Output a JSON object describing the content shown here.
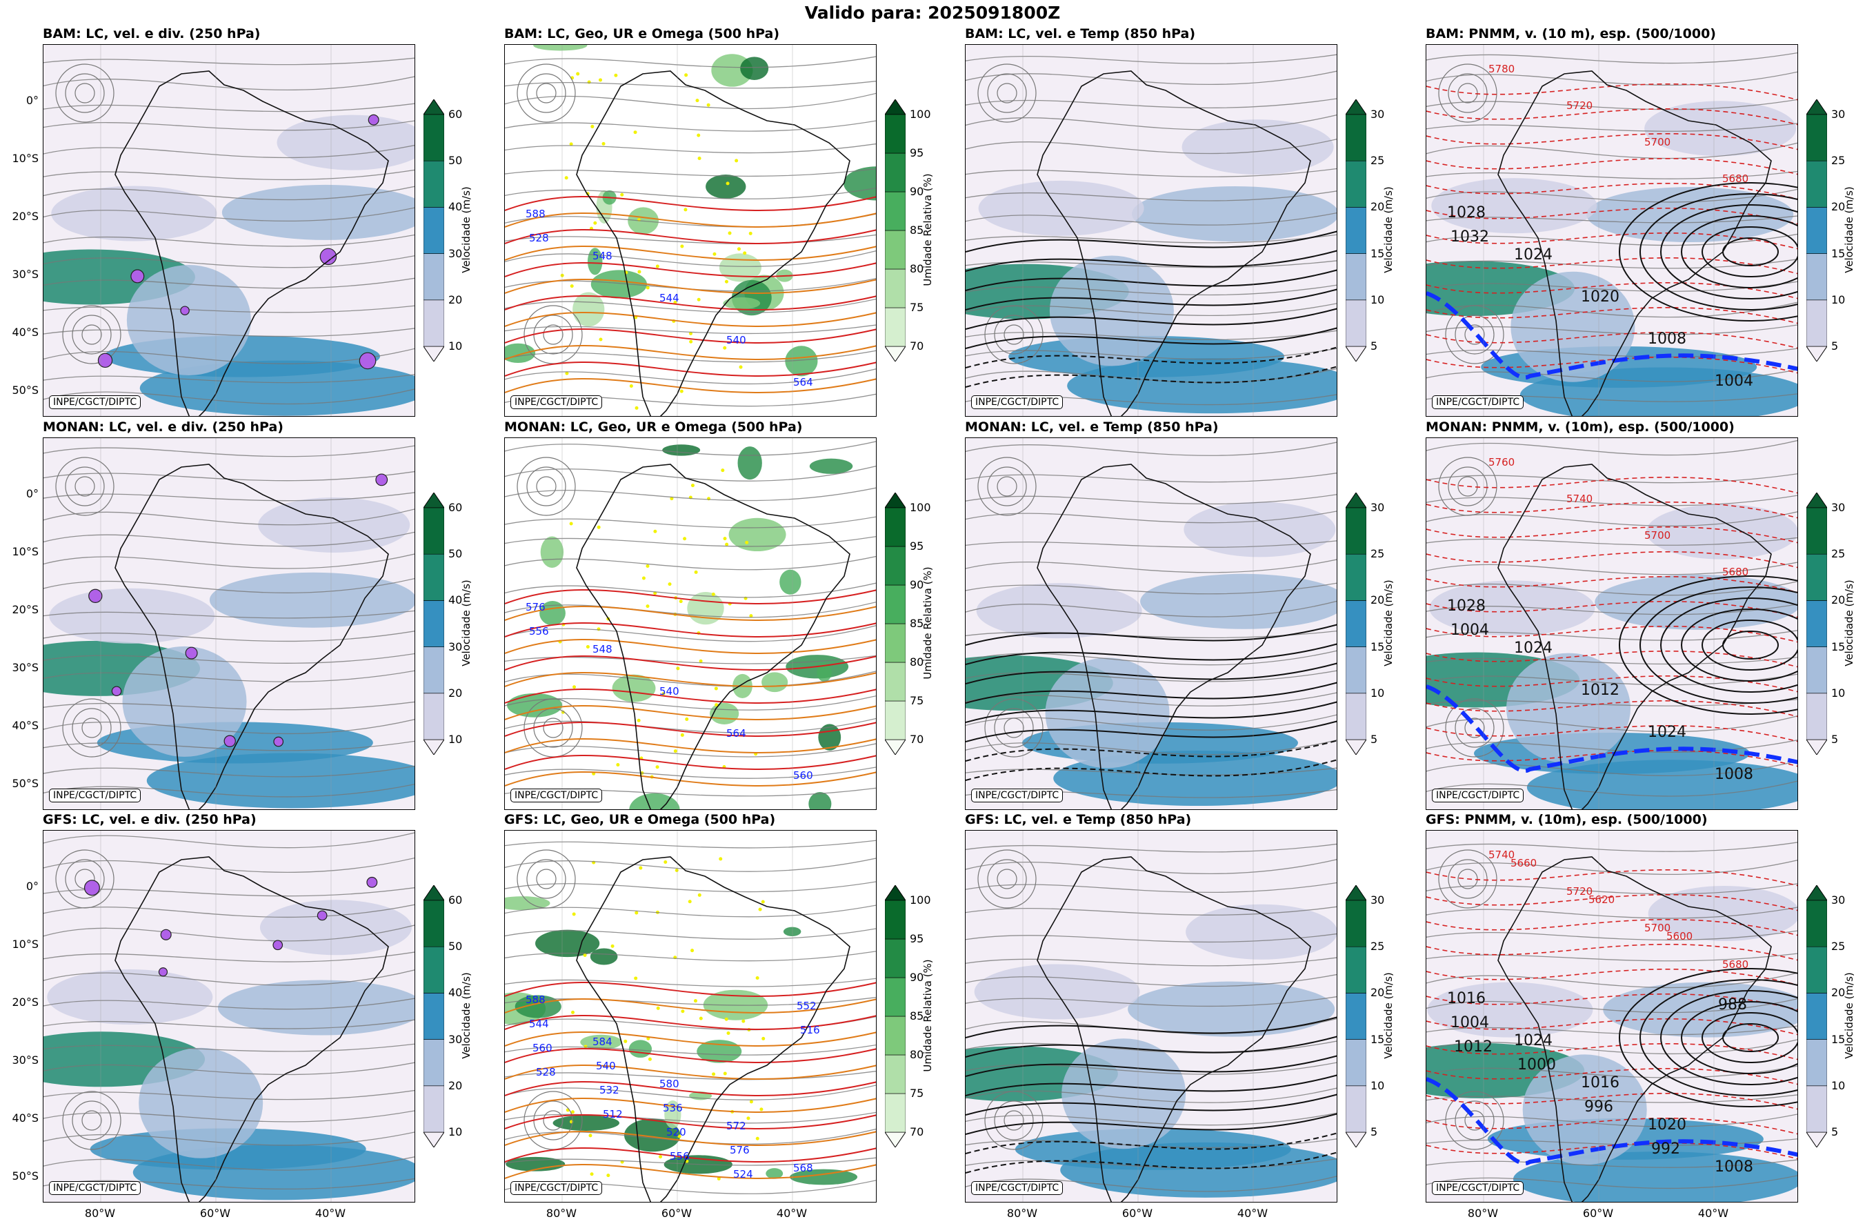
{
  "figure": {
    "title": "Valido para: 2025091800Z",
    "credit": "INPE/CGCT/DIPTC"
  },
  "axes": {
    "lat_ticks": [
      "0°",
      "10°S",
      "20°S",
      "30°S",
      "40°S",
      "50°S"
    ],
    "lon_ticks": [
      "80°W",
      "60°W",
      "40°W"
    ]
  },
  "colors": {
    "contour_geo": "#d62020",
    "contour_temp": "#111111",
    "streamline": "#777777",
    "blue_line": "#1030ff",
    "label_blue": "#1020ff"
  },
  "colorbars": {
    "vel_250": {
      "label": "Velocidade (m/s)",
      "ticks": [
        "10",
        "20",
        "30",
        "40",
        "50",
        "60"
      ],
      "colors": [
        "#f3eef6",
        "#d0d1e6",
        "#a6bddb",
        "#3690c0",
        "#1f8a70",
        "#0b6b3a",
        "#0b5a30"
      ]
    },
    "ur_500": {
      "label": "Umidade Relativa (%)",
      "ticks": [
        "70",
        "75",
        "80",
        "85",
        "90",
        "95",
        "100"
      ],
      "colors": [
        "#f7fcf5",
        "#d5efcf",
        "#b0dfa9",
        "#7ec97b",
        "#48ae5e",
        "#238b45",
        "#0a6b2c",
        "#00441b"
      ]
    },
    "vel_850": {
      "label": "Velocidade (m/s)",
      "ticks": [
        "5",
        "10",
        "15",
        "20",
        "25",
        "30"
      ],
      "colors": [
        "#f3eef6",
        "#d0d1e6",
        "#a6bddb",
        "#3690c0",
        "#1f8a70",
        "#0b6b3a",
        "#0b5a30"
      ]
    },
    "vel_10m": {
      "label": "Velocidade (m/s)",
      "ticks": [
        "5",
        "10",
        "15",
        "20",
        "25",
        "30"
      ],
      "colors": [
        "#f3eef6",
        "#d0d1e6",
        "#a6bddb",
        "#3690c0",
        "#1f8a70",
        "#0b6b3a",
        "#0b5a30"
      ]
    }
  },
  "rows": [
    {
      "model": "BAM",
      "titles": [
        "BAM: LC, vel. e div. (250 hPa)",
        "BAM: LC, Geo, UR e Omega (500 hPa)",
        "BAM: LC, vel. e Temp (850 hPa)",
        "BAM: PNMM, v. (10 m), esp. (500/1000)"
      ],
      "geo_labels": [
        "588",
        "548",
        "544",
        "540",
        "564",
        "528"
      ],
      "pnmm_labels": [
        "1028",
        "1024",
        "1020",
        "1008",
        "1004",
        "1032"
      ],
      "thk_labels": [
        "5780",
        "5720",
        "5700",
        "5680"
      ]
    },
    {
      "model": "MONAN",
      "titles": [
        "MONAN: LC, vel. e div. (250 hPa)",
        "MONAN: LC, Geo, UR e Omega (500 hPa)",
        "MONAN: LC, vel. e Temp (850 hPa)",
        "MONAN: PNMM, v. (10m), esp. (500/1000)"
      ],
      "geo_labels": [
        "576",
        "548",
        "540",
        "564",
        "560",
        "556"
      ],
      "pnmm_labels": [
        "1028",
        "1024",
        "1012",
        "1024",
        "1008",
        "1004"
      ],
      "thk_labels": [
        "5760",
        "5740",
        "5700",
        "5680"
      ]
    },
    {
      "model": "GFS",
      "titles": [
        "GFS: LC, vel. e div. (250 hPa)",
        "GFS: LC, Geo, UR e Omega (500 hPa)",
        "GFS: LC, vel. e Temp (850 hPa)",
        "GFS: PNMM, v. (10m), esp. (500/1000)"
      ],
      "geo_labels": [
        "588",
        "584",
        "580",
        "572",
        "568",
        "544",
        "540",
        "536",
        "576",
        "552",
        "560",
        "532",
        "520",
        "524",
        "516",
        "528",
        "512",
        "556"
      ],
      "pnmm_labels": [
        "1016",
        "1024",
        "1016",
        "1020",
        "1008",
        "1004",
        "1000",
        "996",
        "992",
        "988",
        "1012"
      ],
      "thk_labels": [
        "5740",
        "5720",
        "5700",
        "5680",
        "5660",
        "5620",
        "5600"
      ]
    }
  ]
}
